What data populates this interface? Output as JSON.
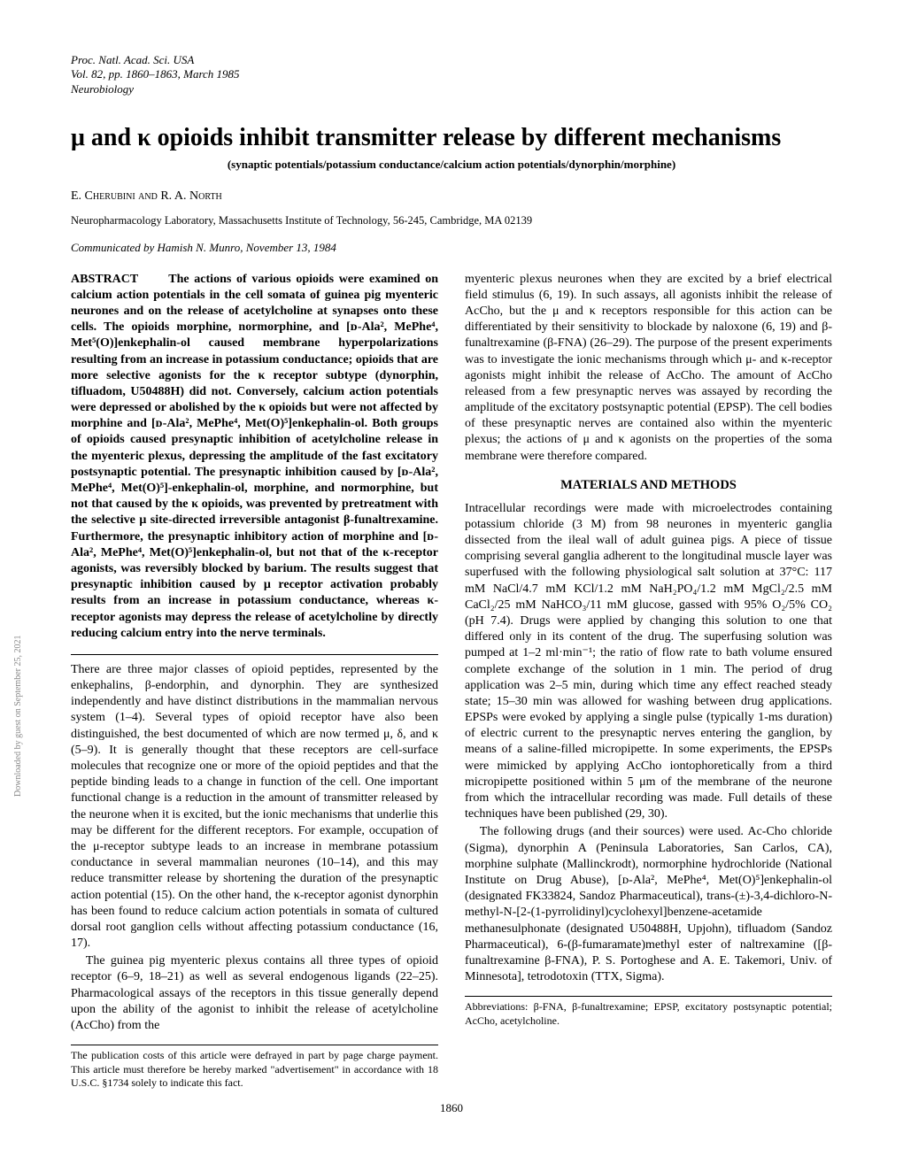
{
  "journal": {
    "line1": "Proc. Natl. Acad. Sci. USA",
    "line2": "Vol. 82, pp. 1860–1863, March 1985",
    "line3": "Neurobiology"
  },
  "title": "μ and κ opioids inhibit transmitter release by different mechanisms",
  "keywords": "(synaptic potentials/potassium conductance/calcium action potentials/dynorphin/morphine)",
  "authors": "E. Cherubini and R. A. North",
  "affiliation": "Neuropharmacology Laboratory, Massachusetts Institute of Technology, 56-245, Cambridge, MA 02139",
  "communicated": "Communicated by Hamish N. Munro, November 13, 1984",
  "abstract": {
    "heading": "ABSTRACT",
    "text": "The actions of various opioids were examined on calcium action potentials in the cell somata of guinea pig myenteric neurones and on the release of acetylcholine at synapses onto these cells. The opioids morphine, normorphine, and [ᴅ-Ala², MePhe⁴, Met⁵(O)]enkephalin-ol caused membrane hyperpolarizations resulting from an increase in potassium conductance; opioids that are more selective agonists for the κ receptor subtype (dynorphin, tifluadom, U50488H) did not. Conversely, calcium action potentials were depressed or abolished by the κ opioids but were not affected by morphine and [ᴅ-Ala², MePhe⁴, Met(O)⁵]enkephalin-ol. Both groups of opioids caused presynaptic inhibition of acetylcholine release in the myenteric plexus, depressing the amplitude of the fast excitatory postsynaptic potential. The presynaptic inhibition caused by [ᴅ-Ala², MePhe⁴, Met(O)⁵]-enkephalin-ol, morphine, and normorphine, but not that caused by the κ opioids, was prevented by pretreatment with the selective μ site-directed irreversible antagonist β-funaltrexamine. Furthermore, the presynaptic inhibitory action of morphine and [ᴅ-Ala², MePhe⁴, Met(O)⁵]enkephalin-ol, but not that of the κ-receptor agonists, was reversibly blocked by barium. The results suggest that presynaptic inhibition caused by μ receptor activation probably results from an increase in potassium conductance, whereas κ-receptor agonists may depress the release of acetylcholine by directly reducing calcium entry into the nerve terminals."
  },
  "intro": {
    "p1": "There are three major classes of opioid peptides, represented by the enkephalins, β-endorphin, and dynorphin. They are synthesized independently and have distinct distributions in the mammalian nervous system (1–4). Several types of opioid receptor have also been distinguished, the best documented of which are now termed μ, δ, and κ (5–9). It is generally thought that these receptors are cell-surface molecules that recognize one or more of the opioid peptides and that the peptide binding leads to a change in function of the cell. One important functional change is a reduction in the amount of transmitter released by the neurone when it is excited, but the ionic mechanisms that underlie this may be different for the different receptors. For example, occupation of the μ-receptor subtype leads to an increase in membrane potassium conductance in several mammalian neurones (10–14), and this may reduce transmitter release by shortening the duration of the presynaptic action potential (15). On the other hand, the κ-receptor agonist dynorphin has been found to reduce calcium action potentials in somata of cultured dorsal root ganglion cells without affecting potassium conductance (16, 17).",
    "p2": "The guinea pig myenteric plexus contains all three types of opioid receptor (6–9, 18–21) as well as several endogenous ligands (22–25). Pharmacological assays of the receptors in this tissue generally depend upon the ability of the agonist to inhibit the release of acetylcholine (AcCho) from the",
    "p3": "myenteric plexus neurones when they are excited by a brief electrical field stimulus (6, 19). In such assays, all agonists inhibit the release of AcCho, but the μ and κ receptors responsible for this action can be differentiated by their sensitivity to blockade by naloxone (6, 19) and β-funaltrexamine (β-FNA) (26–29). The purpose of the present experiments was to investigate the ionic mechanisms through which μ- and κ-receptor agonists might inhibit the release of AcCho. The amount of AcCho released from a few presynaptic nerves was assayed by recording the amplitude of the excitatory postsynaptic potential (EPSP). The cell bodies of these presynaptic nerves are contained also within the myenteric plexus; the actions of μ and κ agonists on the properties of the soma membrane were therefore compared."
  },
  "methods": {
    "heading": "MATERIALS AND METHODS",
    "p1": "Intracellular recordings were made with microelectrodes containing potassium chloride (3 M) from 98 neurones in myenteric ganglia dissected from the ileal wall of adult guinea pigs. A piece of tissue comprising several ganglia adherent to the longitudinal muscle layer was superfused with the following physiological salt solution at 37°C: 117 mM NaCl/4.7 mM KCl/1.2 mM NaH₂PO₄/1.2 mM MgCl₂/2.5 mM CaCl₂/25 mM NaHCO₃/11 mM glucose, gassed with 95% O₂/5% CO₂ (pH 7.4). Drugs were applied by changing this solution to one that differed only in its content of the drug. The superfusing solution was pumped at 1–2 ml·min⁻¹; the ratio of flow rate to bath volume ensured complete exchange of the solution in 1 min. The period of drug application was 2–5 min, during which time any effect reached steady state; 15–30 min was allowed for washing between drug applications. EPSPs were evoked by applying a single pulse (typically 1-ms duration) of electric current to the presynaptic nerves entering the ganglion, by means of a saline-filled micropipette. In some experiments, the EPSPs were mimicked by applying AcCho iontophoretically from a third micropipette positioned within 5 μm of the membrane of the neurone from which the intracellular recording was made. Full details of these techniques have been published (29, 30).",
    "p2": "The following drugs (and their sources) were used. Ac-Cho chloride (Sigma), dynorphin A (Peninsula Laboratories, San Carlos, CA), morphine sulphate (Mallinckrodt), normorphine hydrochloride (National Institute on Drug Abuse), [ᴅ-Ala², MePhe⁴, Met(O)⁵]enkephalin-ol (designated FK33824, Sandoz Pharmaceutical), trans-(±)-3,4-dichloro-N-methyl-N-[2-(1-pyrrolidinyl)cyclohexyl]benzene-acetamide methanesulphonate (designated U50488H, Upjohn), tifluadom (Sandoz Pharmaceutical), 6-(β-fumaramate)methyl ester of naltrexamine ([β-funaltrexamine β-FNA), P. S. Portoghese and A. E. Takemori, Univ. of Minnesota], tetrodotoxin (TTX, Sigma)."
  },
  "footnotes": {
    "left": "The publication costs of this article were defrayed in part by page charge payment. This article must therefore be hereby marked \"advertisement\" in accordance with 18 U.S.C. §1734 solely to indicate this fact.",
    "right": "Abbreviations: β-FNA, β-funaltrexamine; EPSP, excitatory postsynaptic potential; AcCho, acetylcholine."
  },
  "page_number": "1860",
  "sidebar": "Downloaded by guest on September 25, 2021"
}
